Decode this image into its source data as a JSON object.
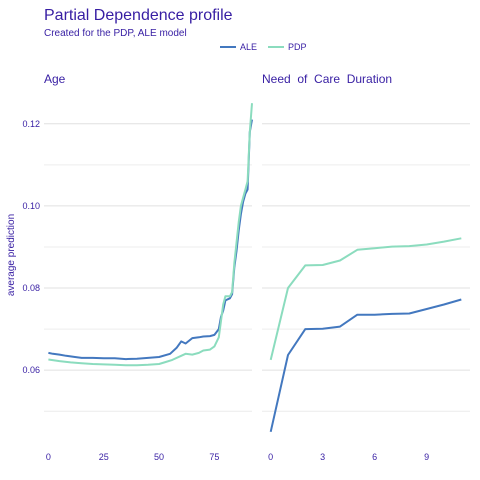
{
  "chart_data": {
    "type": "line",
    "title": "Partial Dependence profile",
    "subtitle": "Created for the PDP, ALE model",
    "ylabel": "average prediction",
    "legend": {
      "position": "top",
      "entries": [
        {
          "name": "ALE",
          "color": "#4378bf"
        },
        {
          "name": "PDP",
          "color": "#8bdcbe"
        }
      ]
    },
    "ylim": [
      0.043,
      0.127
    ],
    "yticks": [
      0.06,
      0.08,
      0.1,
      0.12
    ],
    "ytick_labels": [
      "0.06",
      "0.08",
      "0.10",
      "0.12"
    ],
    "panels": [
      {
        "title": "Age",
        "xlim": [
          -2,
          92
        ],
        "xticks": [
          0,
          25,
          50,
          75
        ],
        "series": [
          {
            "name": "ALE",
            "color": "#4378bf",
            "points": [
              [
                0,
                0.0642
              ],
              [
                2,
                0.064
              ],
              [
                5,
                0.0638
              ],
              [
                8,
                0.0635
              ],
              [
                12,
                0.0632
              ],
              [
                15,
                0.063
              ],
              [
                20,
                0.063
              ],
              [
                25,
                0.0629
              ],
              [
                30,
                0.0629
              ],
              [
                35,
                0.0627
              ],
              [
                40,
                0.0628
              ],
              [
                45,
                0.063
              ],
              [
                50,
                0.0632
              ],
              [
                55,
                0.064
              ],
              [
                58,
                0.0655
              ],
              [
                60,
                0.067
              ],
              [
                62,
                0.0665
              ],
              [
                65,
                0.0678
              ],
              [
                68,
                0.068
              ],
              [
                70,
                0.0682
              ],
              [
                73,
                0.0683
              ],
              [
                75,
                0.0686
              ],
              [
                77,
                0.07
              ],
              [
                78,
                0.073
              ],
              [
                79,
                0.0745
              ],
              [
                80,
                0.077
              ],
              [
                82,
                0.0775
              ],
              [
                83,
                0.0785
              ],
              [
                84,
                0.085
              ],
              [
                85,
                0.089
              ],
              [
                86,
                0.094
              ],
              [
                87,
                0.098
              ],
              [
                88,
                0.101
              ],
              [
                89,
                0.103
              ],
              [
                90,
                0.104
              ],
              [
                91,
                0.118
              ],
              [
                92,
                0.121
              ]
            ]
          },
          {
            "name": "PDP",
            "color": "#8bdcbe",
            "points": [
              [
                0,
                0.0626
              ],
              [
                5,
                0.0622
              ],
              [
                10,
                0.0619
              ],
              [
                15,
                0.0617
              ],
              [
                20,
                0.0615
              ],
              [
                25,
                0.0614
              ],
              [
                30,
                0.0613
              ],
              [
                35,
                0.0612
              ],
              [
                40,
                0.0612
              ],
              [
                45,
                0.0613
              ],
              [
                50,
                0.0615
              ],
              [
                53,
                0.062
              ],
              [
                56,
                0.0625
              ],
              [
                60,
                0.0635
              ],
              [
                62,
                0.064
              ],
              [
                65,
                0.0638
              ],
              [
                68,
                0.0642
              ],
              [
                70,
                0.0648
              ],
              [
                73,
                0.065
              ],
              [
                75,
                0.0658
              ],
              [
                77,
                0.068
              ],
              [
                78,
                0.072
              ],
              [
                79,
                0.076
              ],
              [
                80,
                0.078
              ],
              [
                82,
                0.078
              ],
              [
                83,
                0.079
              ],
              [
                84,
                0.086
              ],
              [
                85,
                0.091
              ],
              [
                86,
                0.096
              ],
              [
                87,
                0.1
              ],
              [
                88,
                0.102
              ],
              [
                89,
                0.104
              ],
              [
                90,
                0.106
              ],
              [
                91,
                0.118
              ],
              [
                92,
                0.125
              ]
            ]
          }
        ]
      },
      {
        "title": "Need  of  Care  Duration",
        "xlim": [
          -0.5,
          11.5
        ],
        "xticks": [
          0,
          3,
          6,
          9
        ],
        "series": [
          {
            "name": "ALE",
            "color": "#4378bf",
            "points": [
              [
                0,
                0.045
              ],
              [
                1,
                0.0637
              ],
              [
                2,
                0.07
              ],
              [
                3,
                0.0701
              ],
              [
                4,
                0.0706
              ],
              [
                5,
                0.0735
              ],
              [
                6,
                0.0735
              ],
              [
                7,
                0.0737
              ],
              [
                8,
                0.0738
              ],
              [
                9,
                0.0749
              ],
              [
                10,
                0.076
              ],
              [
                11,
                0.0772
              ]
            ]
          },
          {
            "name": "PDP",
            "color": "#8bdcbe",
            "points": [
              [
                0,
                0.0625
              ],
              [
                1,
                0.08
              ],
              [
                2,
                0.0855
              ],
              [
                3,
                0.0856
              ],
              [
                4,
                0.0867
              ],
              [
                5,
                0.0893
              ],
              [
                6,
                0.0897
              ],
              [
                7,
                0.0901
              ],
              [
                8,
                0.0902
              ],
              [
                9,
                0.0906
              ],
              [
                10,
                0.0913
              ],
              [
                11,
                0.0921
              ]
            ]
          }
        ]
      }
    ]
  }
}
